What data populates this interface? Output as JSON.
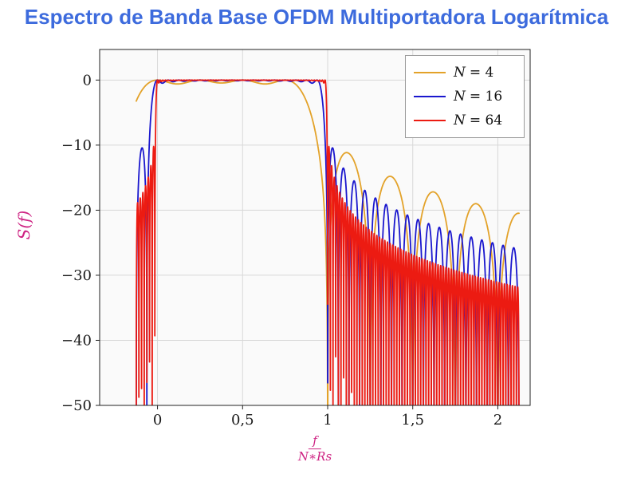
{
  "page": {
    "title": "Espectro de Banda Base OFDM Multiportadora Logarítmica"
  },
  "colors": {
    "title": "#3d6bdd",
    "axis_label": "#ce2483",
    "plot_bg": "#fafafa",
    "grid": "#d8d8d8",
    "frame": "#222222",
    "tick_text": "#1a1a1a",
    "legend_bg": "#ffffff",
    "legend_border": "#9a9a9a"
  },
  "chart_data": {
    "type": "line",
    "title": "Espectro de Banda Base OFDM Multiportadora Logarítmica",
    "ylabel": "S(f)",
    "xlabel": {
      "numerator": "f",
      "denominator": "N∗Rs"
    },
    "xlim": [
      -0.34,
      2.19
    ],
    "ylim": [
      -50,
      4.7
    ],
    "xticks": {
      "values": [
        0,
        0.5,
        1,
        1.5,
        2
      ],
      "labels": [
        "0",
        "0,5",
        "1",
        "1,5",
        "2"
      ]
    },
    "yticks": {
      "values": [
        0,
        -10,
        -20,
        -30,
        -40,
        -50
      ],
      "labels": [
        "0",
        "−10",
        "−20",
        "−30",
        "−40",
        "−50"
      ]
    },
    "grid": true,
    "legend": {
      "position": "top-right",
      "items": [
        {
          "var": "N",
          "value": "= 4",
          "label": "N = 4"
        },
        {
          "var": "N",
          "value": "= 16",
          "label": "N = 16"
        },
        {
          "var": "N",
          "value": "= 64",
          "label": "N = 64"
        }
      ]
    },
    "series": [
      {
        "name": "N = 4",
        "N": 4,
        "color": "#e3a229"
      },
      {
        "name": "N = 16",
        "N": 16,
        "color": "#1a17ce"
      },
      {
        "name": "N = 64",
        "N": 64,
        "color": "#ec1b12"
      }
    ],
    "model": "S_N(x) = 10*log10( sum_{k=0}^{N-1} sinc^2(N*x - k) ), x = f/(N*Rs), flat ~0 dB for 0<x<1, sidelobes beyond (first sidelobe ~ -12 dB, decaying to ~ -20...-30 dB near x=2)",
    "domain": [
      -0.125,
      2.125
    ],
    "samples": 4800
  }
}
